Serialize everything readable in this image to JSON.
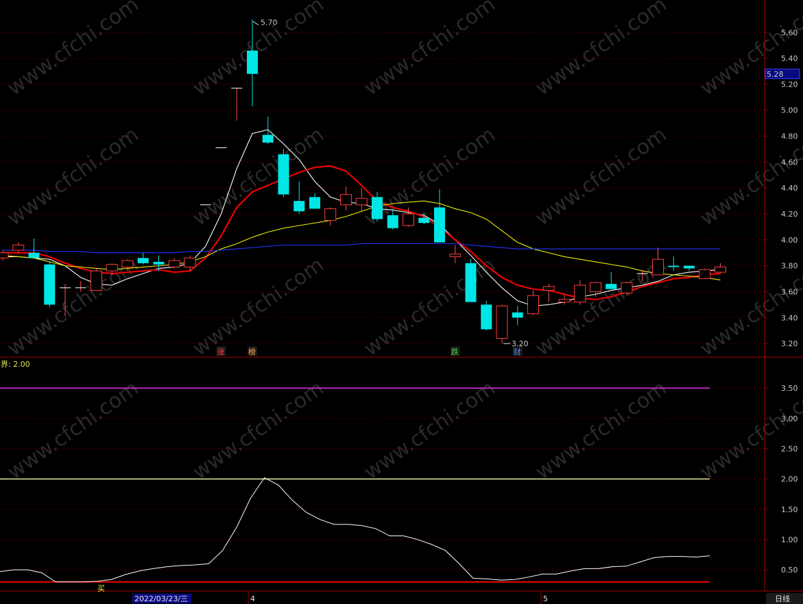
{
  "chart_data": [
    {
      "type": "candlestick",
      "panel": "price",
      "ylim": [
        3.1,
        5.85
      ],
      "yticks": [
        "3.20",
        "3.40",
        "3.60",
        "3.80",
        "4.00",
        "4.20",
        "4.40",
        "4.60",
        "4.80",
        "5.00",
        "5.20",
        "5.40",
        "5.60"
      ],
      "current_price_tag": "5.28",
      "high_annotation": "5.70",
      "low_annotation": "3.20",
      "event_markers": [
        "涨",
        "榜",
        "跌",
        "财"
      ],
      "candles": [
        {
          "o": 3.86,
          "h": 3.92,
          "l": 3.84,
          "c": 3.9
        },
        {
          "o": 3.92,
          "h": 3.98,
          "l": 3.9,
          "c": 3.96
        },
        {
          "o": 3.9,
          "h": 4.01,
          "l": 3.86,
          "c": 3.86
        },
        {
          "o": 3.81,
          "h": 3.83,
          "l": 3.48,
          "c": 3.5
        },
        {
          "o": 3.63,
          "h": 3.66,
          "l": 3.41,
          "c": 3.63
        },
        {
          "o": 3.63,
          "h": 3.68,
          "l": 3.6,
          "c": 3.63
        },
        {
          "o": 3.61,
          "h": 3.78,
          "l": 3.61,
          "c": 3.76
        },
        {
          "o": 3.76,
          "h": 3.82,
          "l": 3.73,
          "c": 3.81
        },
        {
          "o": 3.79,
          "h": 3.85,
          "l": 3.76,
          "c": 3.84
        },
        {
          "o": 3.86,
          "h": 3.9,
          "l": 3.81,
          "c": 3.82
        },
        {
          "o": 3.83,
          "h": 3.88,
          "l": 3.76,
          "c": 3.81
        },
        {
          "o": 3.79,
          "h": 3.86,
          "l": 3.78,
          "c": 3.84
        },
        {
          "o": 3.79,
          "h": 3.88,
          "l": 3.76,
          "c": 3.86
        },
        {
          "o": 4.27,
          "h": 4.27,
          "l": 4.27,
          "c": 4.27
        },
        {
          "o": 4.71,
          "h": 4.71,
          "l": 4.71,
          "c": 4.71
        },
        {
          "o": 5.17,
          "h": 5.17,
          "l": 4.92,
          "c": 5.17
        },
        {
          "o": 5.46,
          "h": 5.7,
          "l": 5.03,
          "c": 5.28
        },
        {
          "o": 4.81,
          "h": 4.95,
          "l": 4.74,
          "c": 4.75
        },
        {
          "o": 4.66,
          "h": 4.7,
          "l": 4.33,
          "c": 4.35
        },
        {
          "o": 4.3,
          "h": 4.45,
          "l": 4.2,
          "c": 4.22
        },
        {
          "o": 4.33,
          "h": 4.36,
          "l": 4.24,
          "c": 4.24
        },
        {
          "o": 4.15,
          "h": 4.25,
          "l": 4.11,
          "c": 4.24
        },
        {
          "o": 4.27,
          "h": 4.41,
          "l": 4.23,
          "c": 4.35
        },
        {
          "o": 4.27,
          "h": 4.4,
          "l": 4.22,
          "c": 4.32
        },
        {
          "o": 4.33,
          "h": 4.37,
          "l": 4.14,
          "c": 4.16
        },
        {
          "o": 4.19,
          "h": 4.23,
          "l": 4.08,
          "c": 4.09
        },
        {
          "o": 4.11,
          "h": 4.25,
          "l": 4.1,
          "c": 4.2
        },
        {
          "o": 4.17,
          "h": 4.21,
          "l": 4.12,
          "c": 4.13
        },
        {
          "o": 4.25,
          "h": 4.39,
          "l": 3.98,
          "c": 3.98
        },
        {
          "o": 3.87,
          "h": 3.96,
          "l": 3.82,
          "c": 3.89
        },
        {
          "o": 3.82,
          "h": 3.85,
          "l": 3.52,
          "c": 3.52
        },
        {
          "o": 3.5,
          "h": 3.53,
          "l": 3.3,
          "c": 3.31
        },
        {
          "o": 3.24,
          "h": 3.5,
          "l": 3.2,
          "c": 3.49
        },
        {
          "o": 3.44,
          "h": 3.49,
          "l": 3.34,
          "c": 3.4
        },
        {
          "o": 3.43,
          "h": 3.61,
          "l": 3.42,
          "c": 3.57
        },
        {
          "o": 3.61,
          "h": 3.66,
          "l": 3.52,
          "c": 3.64
        },
        {
          "o": 3.52,
          "h": 3.58,
          "l": 3.5,
          "c": 3.54
        },
        {
          "o": 3.52,
          "h": 3.69,
          "l": 3.5,
          "c": 3.65
        },
        {
          "o": 3.6,
          "h": 3.68,
          "l": 3.56,
          "c": 3.67
        },
        {
          "o": 3.66,
          "h": 3.75,
          "l": 3.62,
          "c": 3.62
        },
        {
          "o": 3.59,
          "h": 3.68,
          "l": 3.57,
          "c": 3.67
        },
        {
          "o": 3.74,
          "h": 3.77,
          "l": 3.68,
          "c": 3.74
        },
        {
          "o": 3.73,
          "h": 3.94,
          "l": 3.73,
          "c": 3.85
        },
        {
          "o": 3.8,
          "h": 3.87,
          "l": 3.76,
          "c": 3.79
        },
        {
          "o": 3.8,
          "h": 3.8,
          "l": 3.76,
          "c": 3.78
        },
        {
          "o": 3.7,
          "h": 3.78,
          "l": 3.7,
          "c": 3.77
        },
        {
          "o": 3.75,
          "h": 3.82,
          "l": 3.74,
          "c": 3.79
        }
      ],
      "series": [
        {
          "color": "#ffffff",
          "values": [
            3.87,
            3.87,
            3.86,
            3.85,
            3.8,
            3.71,
            3.66,
            3.65,
            3.7,
            3.74,
            3.78,
            3.79,
            3.82,
            3.95,
            4.2,
            4.55,
            4.82,
            4.85,
            4.74,
            4.62,
            4.45,
            4.33,
            4.29,
            4.28,
            4.24,
            4.23,
            4.21,
            4.19,
            4.12,
            4.0,
            3.88,
            3.75,
            3.63,
            3.53,
            3.49,
            3.5,
            3.52,
            3.56,
            3.58,
            3.61,
            3.63,
            3.65,
            3.68,
            3.73,
            3.75,
            3.76,
            3.77
          ]
        },
        {
          "color": "#ee0000",
          "values": [
            3.9,
            3.9,
            3.9,
            3.87,
            3.82,
            3.78,
            3.75,
            3.74,
            3.75,
            3.76,
            3.77,
            3.75,
            3.76,
            3.86,
            4.03,
            4.25,
            4.37,
            4.42,
            4.47,
            4.52,
            4.56,
            4.57,
            4.53,
            4.42,
            4.3,
            4.25,
            4.22,
            4.18,
            4.1,
            4.0,
            3.91,
            3.8,
            3.71,
            3.65,
            3.62,
            3.61,
            3.58,
            3.55,
            3.54,
            3.56,
            3.6,
            3.64,
            3.67,
            3.7,
            3.71,
            3.73,
            3.74
          ]
        },
        {
          "color": "#eeee00",
          "values": [
            3.88,
            3.87,
            3.86,
            3.83,
            3.8,
            3.79,
            3.78,
            3.77,
            3.78,
            3.79,
            3.8,
            3.81,
            3.83,
            3.87,
            3.93,
            3.97,
            4.02,
            4.06,
            4.09,
            4.11,
            4.13,
            4.15,
            4.18,
            4.22,
            4.26,
            4.28,
            4.29,
            4.3,
            4.28,
            4.24,
            4.21,
            4.16,
            4.07,
            3.98,
            3.93,
            3.9,
            3.87,
            3.85,
            3.83,
            3.81,
            3.79,
            3.76,
            3.74,
            3.73,
            3.72,
            3.71,
            3.69
          ]
        },
        {
          "color": "#2233ff",
          "values": [
            3.92,
            3.92,
            3.92,
            3.91,
            3.91,
            3.91,
            3.9,
            3.9,
            3.9,
            3.9,
            3.9,
            3.9,
            3.91,
            3.91,
            3.92,
            3.93,
            3.94,
            3.95,
            3.96,
            3.96,
            3.96,
            3.96,
            3.96,
            3.97,
            3.97,
            3.97,
            3.97,
            3.97,
            3.97,
            3.97,
            3.96,
            3.95,
            3.94,
            3.93,
            3.93,
            3.93,
            3.93,
            3.93,
            3.93,
            3.93,
            3.93,
            3.93,
            3.93,
            3.93,
            3.93,
            3.93,
            3.93
          ]
        }
      ]
    },
    {
      "type": "line",
      "panel": "indicator",
      "title": "界: 2.00",
      "ylim": [
        0.15,
        4.0
      ],
      "yticks": [
        "0.50",
        "1.00",
        "1.50",
        "2.00",
        "2.50",
        "3.00",
        "3.50"
      ],
      "hlines": [
        {
          "value": 3.5,
          "color": "#ee33ee"
        },
        {
          "value": 2.0,
          "color": "#e6e6a0"
        },
        {
          "value": 0.3,
          "color": "#ee0000"
        }
      ],
      "buy_marker": "买",
      "series": [
        {
          "color": "#ffffff",
          "values": [
            0.47,
            0.5,
            0.5,
            0.45,
            0.3,
            0.3,
            0.3,
            0.31,
            0.34,
            0.42,
            0.48,
            0.52,
            0.55,
            0.57,
            0.58,
            0.6,
            0.82,
            1.2,
            1.68,
            2.02,
            1.9,
            1.65,
            1.45,
            1.33,
            1.25,
            1.25,
            1.23,
            1.18,
            1.06,
            1.06,
            1.0,
            0.92,
            0.82,
            0.6,
            0.36,
            0.35,
            0.33,
            0.34,
            0.38,
            0.43,
            0.43,
            0.48,
            0.52,
            0.52,
            0.55,
            0.56,
            0.63,
            0.7,
            0.72,
            0.72,
            0.71,
            0.73
          ]
        }
      ]
    }
  ],
  "footer": {
    "date_label": "2022/03/23/三",
    "month_markers": [
      "4",
      "5"
    ],
    "period_label": "日线"
  },
  "watermark": "www.cfchi.com"
}
